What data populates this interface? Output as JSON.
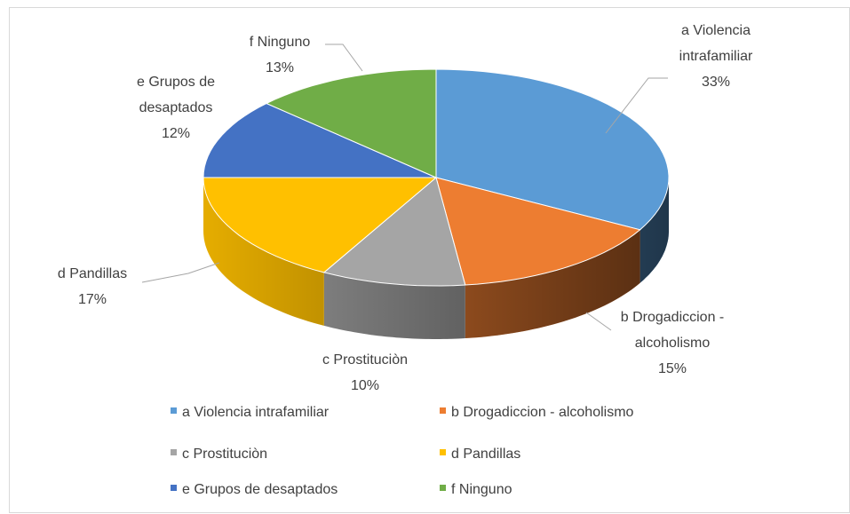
{
  "chart_data": {
    "type": "pie3d",
    "categories": [
      "a Violencia intrafamiliar",
      "b Drogadiccion - alcoholismo",
      "c Prostituciòn",
      "d Pandillas",
      "e Grupos de desaptados",
      "f Ninguno"
    ],
    "values": [
      33,
      15,
      10,
      17,
      12,
      13
    ],
    "value_labels": [
      "33%",
      "15%",
      "10%",
      "17%",
      "12%",
      "13%"
    ],
    "colors": [
      "#5b9bd5",
      "#ed7d31",
      "#a5a5a5",
      "#ffc000",
      "#4472c4",
      "#70ad47"
    ],
    "legend": "bottom"
  }
}
